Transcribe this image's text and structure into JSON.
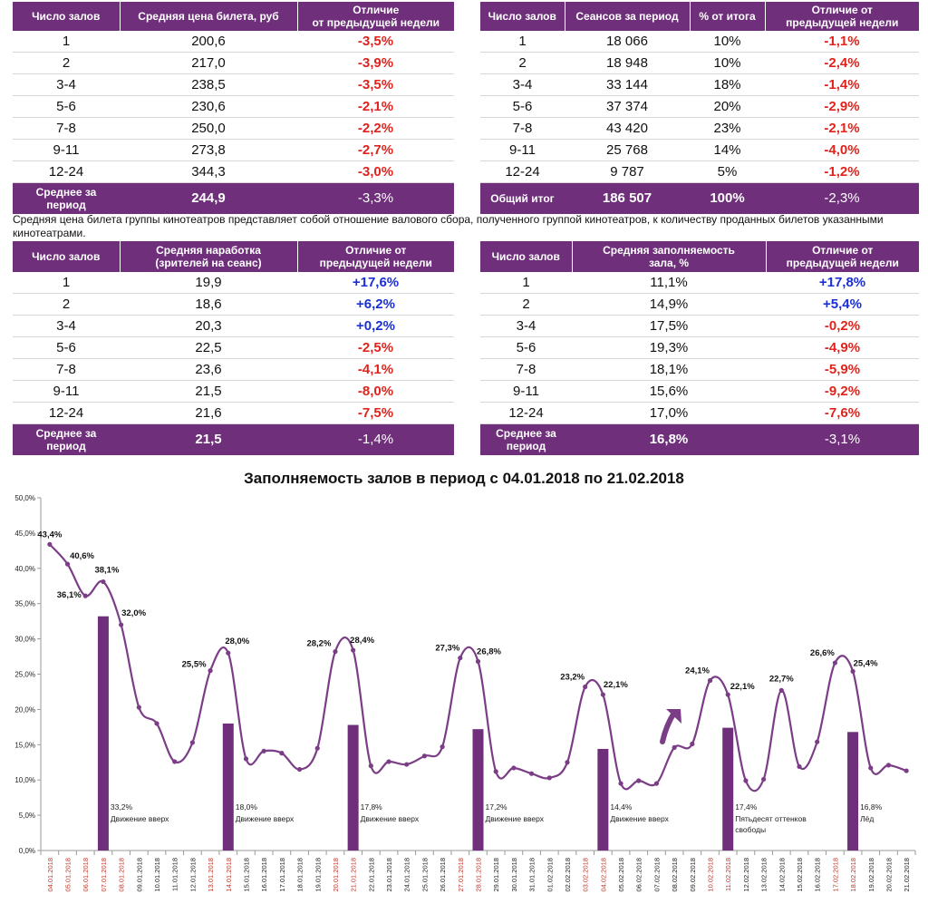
{
  "tables": [
    {
      "id": "price",
      "headers": [
        "Число залов",
        "Средняя цена билета, руб",
        "Отличие\nот предыдущей недели"
      ],
      "rows": [
        {
          "cells": [
            "1",
            "200,6",
            "-3,5%"
          ]
        },
        {
          "cells": [
            "2",
            "217,0",
            "-3,9%"
          ]
        },
        {
          "cells": [
            "3-4",
            "238,5",
            "-3,5%"
          ]
        },
        {
          "cells": [
            "5-6",
            "230,6",
            "-2,1%"
          ]
        },
        {
          "cells": [
            "7-8",
            "250,0",
            "-2,2%"
          ]
        },
        {
          "cells": [
            "9-11",
            "273,8",
            "-2,7%"
          ]
        },
        {
          "cells": [
            "12-24",
            "344,3",
            "-3,0%"
          ]
        }
      ],
      "total": [
        "Среднее за\nпериод",
        "244,9",
        "-3,3%"
      ]
    },
    {
      "id": "sessions",
      "headers": [
        "Число залов",
        "Сеансов за период",
        "% от итога",
        "Отличие от\nпредыдущей недели"
      ],
      "rows": [
        {
          "cells": [
            "1",
            "18 066",
            "10%",
            "-1,1%"
          ]
        },
        {
          "cells": [
            "2",
            "18 948",
            "10%",
            "-2,4%"
          ]
        },
        {
          "cells": [
            "3-4",
            "33 144",
            "18%",
            "-1,4%"
          ]
        },
        {
          "cells": [
            "5-6",
            "37 374",
            "20%",
            "-2,9%"
          ]
        },
        {
          "cells": [
            "7-8",
            "43 420",
            "23%",
            "-2,1%"
          ]
        },
        {
          "cells": [
            "9-11",
            "25 768",
            "14%",
            "-4,0%"
          ]
        },
        {
          "cells": [
            "12-24",
            "9 787",
            "5%",
            "-1,2%"
          ]
        }
      ],
      "total": [
        "Общий итог",
        "186 507",
        "100%",
        "-2,3%"
      ]
    },
    {
      "id": "workload",
      "headers": [
        "Число залов",
        "Средняя наработка\n(зрителей на сеанс)",
        "Отличие от\nпредыдущей недели"
      ],
      "rows": [
        {
          "cells": [
            "1",
            "19,9",
            "+17,6%"
          ]
        },
        {
          "cells": [
            "2",
            "18,6",
            "+6,2%"
          ]
        },
        {
          "cells": [
            "3-4",
            "20,3",
            "+0,2%"
          ]
        },
        {
          "cells": [
            "5-6",
            "22,5",
            "-2,5%"
          ]
        },
        {
          "cells": [
            "7-8",
            "23,6",
            "-4,1%"
          ]
        },
        {
          "cells": [
            "9-11",
            "21,5",
            "-8,0%"
          ]
        },
        {
          "cells": [
            "12-24",
            "21,6",
            "-7,5%"
          ]
        }
      ],
      "total": [
        "Среднее за\nпериод",
        "21,5",
        "-1,4%"
      ]
    },
    {
      "id": "occupancy",
      "headers": [
        "Число залов",
        "Средняя заполняемость\nзала, %",
        "Отличие от\nпредыдущей недели"
      ],
      "rows": [
        {
          "cells": [
            "1",
            "11,1%",
            "+17,8%"
          ]
        },
        {
          "cells": [
            "2",
            "14,9%",
            "+5,4%"
          ]
        },
        {
          "cells": [
            "3-4",
            "17,5%",
            "-0,2%"
          ]
        },
        {
          "cells": [
            "5-6",
            "19,3%",
            "-4,9%"
          ]
        },
        {
          "cells": [
            "7-8",
            "18,1%",
            "-5,9%"
          ]
        },
        {
          "cells": [
            "9-11",
            "15,6%",
            "-9,2%"
          ]
        },
        {
          "cells": [
            "12-24",
            "17,0%",
            "-7,6%"
          ]
        }
      ],
      "total": [
        "Среднее за\nпериод",
        "16,8%",
        "-3,1%"
      ]
    }
  ],
  "note": "Средняя цена билета группы кинотеатров представляет собой отношение валового сбора, полученного группой кинотеатров, к количеству проданных билетов указанными кинотеатрами.",
  "colors": {
    "purple": "#6f2f7b",
    "line": "#7b3d86",
    "negative": "#e0241d",
    "positive": "#1a2fd6",
    "date_red": "#c0392b"
  },
  "chart_data": {
    "type": "line",
    "title": "Заполняемость залов в период с 04.01.2018 по 21.02.2018",
    "ylim": [
      0,
      50
    ],
    "yticks": [
      "0,0%",
      "5,0%",
      "10,0%",
      "15,0%",
      "20,0%",
      "25,0%",
      "30,0%",
      "35,0%",
      "40,0%",
      "45,0%",
      "50,0%"
    ],
    "grid": false,
    "x": [
      "04.01.2018",
      "05.01.2018",
      "06.01.2018",
      "07.01.2018",
      "08.01.2018",
      "09.01.2018",
      "10.01.2018",
      "11.01.2018",
      "12.01.2018",
      "13.01.2018",
      "14.01.2018",
      "15.01.2018",
      "16.01.2018",
      "17.01.2018",
      "18.01.2018",
      "19.01.2018",
      "20.01.2018",
      "21.01.2018",
      "22.01.2018",
      "23.01.2018",
      "24.01.2018",
      "25.01.2018",
      "26.01.2018",
      "27.01.2018",
      "28.01.2018",
      "29.01.2018",
      "30.01.2018",
      "31.01.2018",
      "01.02.2018",
      "02.02.2018",
      "03.02.2018",
      "04.02.2018",
      "05.02.2018",
      "06.02.2018",
      "07.02.2018",
      "08.02.2018",
      "09.02.2018",
      "10.02.2018",
      "11.02.2018",
      "12.02.2018",
      "13.02.2018",
      "14.02.2018",
      "15.02.2018",
      "16.02.2018",
      "17.02.2018",
      "18.02.2018",
      "19.02.2018",
      "20.02.2018",
      "21.02.2018"
    ],
    "weekend": [
      0,
      1,
      2,
      3,
      4,
      9,
      10,
      16,
      17,
      23,
      24,
      30,
      31,
      37,
      38,
      44,
      45
    ],
    "line_values": [
      43.4,
      40.6,
      36.1,
      38.1,
      32.0,
      20.3,
      18.0,
      12.6,
      15.3,
      25.5,
      28.0,
      13.0,
      14.1,
      13.8,
      11.5,
      14.5,
      28.2,
      28.4,
      12.0,
      12.6,
      12.2,
      13.4,
      14.7,
      27.3,
      26.8,
      11.2,
      11.7,
      10.9,
      10.3,
      12.5,
      23.2,
      22.1,
      9.5,
      9.9,
      9.5,
      14.6,
      15.1,
      24.1,
      22.1,
      9.9,
      10.1,
      22.7,
      11.9,
      15.4,
      26.6,
      25.4,
      11.7,
      12.1,
      11.3
    ],
    "point_labels": [
      {
        "index": 0,
        "text": "43,4%"
      },
      {
        "index": 1,
        "text": "40,6%"
      },
      {
        "index": 2,
        "text": "36,1%"
      },
      {
        "index": 3,
        "text": "38,1%"
      },
      {
        "index": 4,
        "text": "32,0%"
      },
      {
        "index": 9,
        "text": "25,5%"
      },
      {
        "index": 10,
        "text": "28,0%"
      },
      {
        "index": 16,
        "text": "28,2%"
      },
      {
        "index": 17,
        "text": "28,4%"
      },
      {
        "index": 23,
        "text": "27,3%"
      },
      {
        "index": 24,
        "text": "26,8%"
      },
      {
        "index": 30,
        "text": "23,2%"
      },
      {
        "index": 31,
        "text": "22,1%"
      },
      {
        "index": 37,
        "text": "24,1%"
      },
      {
        "index": 38,
        "text": "22,1%"
      },
      {
        "index": 41,
        "text": "22,7%"
      },
      {
        "index": 44,
        "text": "26,6%"
      },
      {
        "index": 45,
        "text": "25,4%"
      }
    ],
    "bars": [
      {
        "index": 3,
        "value": 33.2,
        "label": "33,2%",
        "name": "Движение вверх"
      },
      {
        "index": 10,
        "value": 18.0,
        "label": "18,0%",
        "name": "Движение вверх"
      },
      {
        "index": 17,
        "value": 17.8,
        "label": "17,8%",
        "name": "Движение вверх"
      },
      {
        "index": 24,
        "value": 17.2,
        "label": "17,2%",
        "name": "Движение вверх"
      },
      {
        "index": 31,
        "value": 14.4,
        "label": "14,4%",
        "name": "Движение вверх"
      },
      {
        "index": 38,
        "value": 17.4,
        "label": "17,4%",
        "name": "Пятьдесят оттенков\nсвободы"
      },
      {
        "index": 45,
        "value": 16.8,
        "label": "16,8%",
        "name": "Лёд"
      }
    ]
  }
}
